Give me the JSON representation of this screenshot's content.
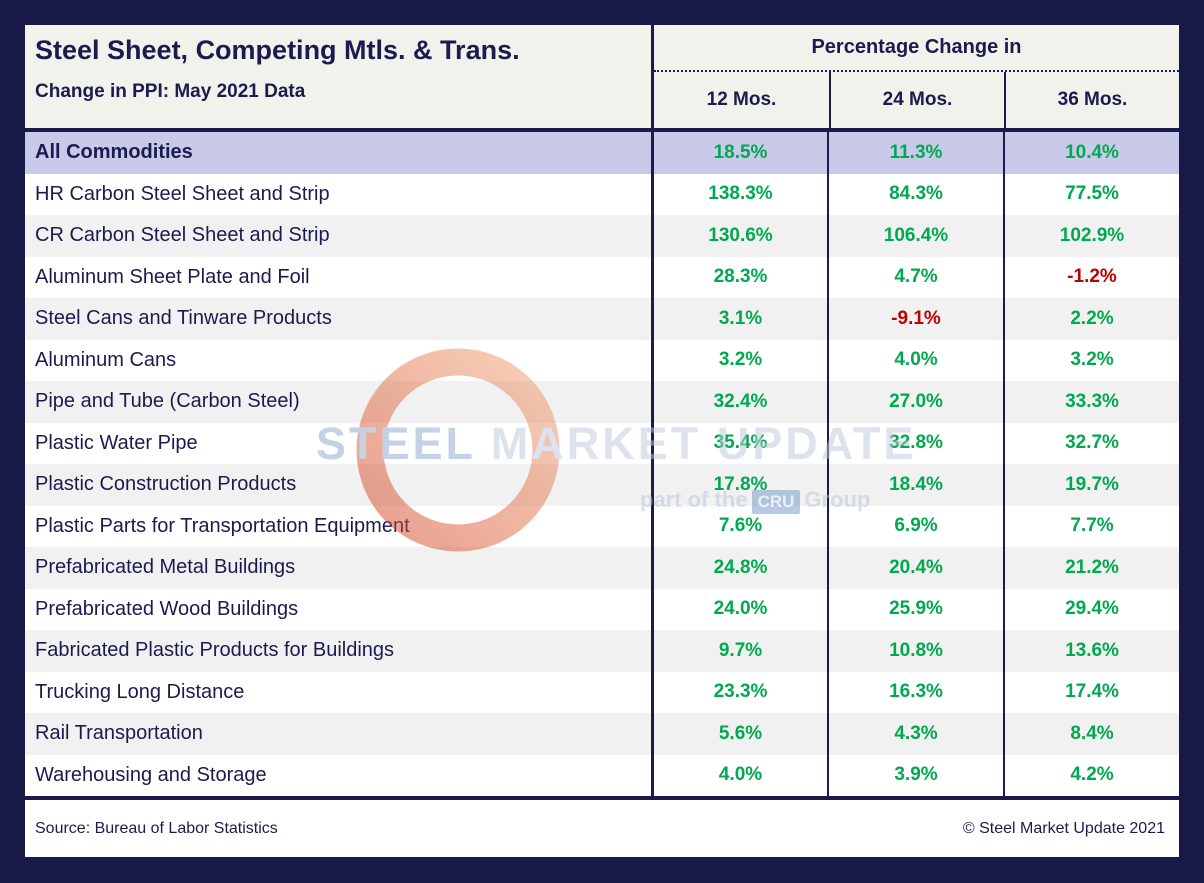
{
  "header": {
    "title": "Steel Sheet, Competing Mtls. & Trans.",
    "subtitle": "Change in PPI: May 2021 Data",
    "group_header": "Percentage Change in",
    "columns": [
      "12 Mos.",
      "24 Mos.",
      "36 Mos."
    ]
  },
  "chart_data": {
    "type": "table",
    "title": "Steel Sheet, Competing Mtls. & Trans.",
    "subtitle": "Change in PPI: May 2021 Data",
    "group_header": "Percentage Change in",
    "columns": [
      "12 Mos.",
      "24 Mos.",
      "36 Mos."
    ],
    "unit": "percent",
    "rows": [
      {
        "label": "All Commodities",
        "values": [
          "18.5%",
          "11.3%",
          "10.4%"
        ],
        "highlight": true
      },
      {
        "label": "HR Carbon Steel Sheet and Strip",
        "values": [
          "138.3%",
          "84.3%",
          "77.5%"
        ]
      },
      {
        "label": "CR Carbon Steel Sheet and Strip",
        "values": [
          "130.6%",
          "106.4%",
          "102.9%"
        ]
      },
      {
        "label": "Aluminum Sheet Plate and Foil",
        "values": [
          "28.3%",
          "4.7%",
          "-1.2%"
        ]
      },
      {
        "label": "Steel Cans and Tinware Products",
        "values": [
          "3.1%",
          "-9.1%",
          "2.2%"
        ]
      },
      {
        "label": "Aluminum Cans",
        "values": [
          "3.2%",
          "4.0%",
          "3.2%"
        ]
      },
      {
        "label": "Pipe and Tube (Carbon Steel)",
        "values": [
          "32.4%",
          "27.0%",
          "33.3%"
        ]
      },
      {
        "label": "Plastic Water Pipe",
        "values": [
          "35.4%",
          "32.8%",
          "32.7%"
        ]
      },
      {
        "label": "Plastic Construction Products",
        "values": [
          "17.8%",
          "18.4%",
          "19.7%"
        ]
      },
      {
        "label": "Plastic Parts for Transportation Equipment",
        "values": [
          "7.6%",
          "6.9%",
          "7.7%"
        ]
      },
      {
        "label": "Prefabricated Metal Buildings",
        "values": [
          "24.8%",
          "20.4%",
          "21.2%"
        ]
      },
      {
        "label": "Prefabricated Wood Buildings",
        "values": [
          "24.0%",
          "25.9%",
          "29.4%"
        ]
      },
      {
        "label": "Fabricated Plastic Products for Buildings",
        "values": [
          "9.7%",
          "10.8%",
          "13.6%"
        ]
      },
      {
        "label": "Trucking Long Distance",
        "values": [
          "23.3%",
          "16.3%",
          "17.4%"
        ]
      },
      {
        "label": "Rail Transportation",
        "values": [
          "5.6%",
          "4.3%",
          "8.4%"
        ]
      },
      {
        "label": "Warehousing and Storage",
        "values": [
          "4.0%",
          "3.9%",
          "4.2%"
        ]
      }
    ]
  },
  "footer": {
    "source": "Source: Bureau of Labor Statistics",
    "copyright": "© Steel Market Update 2021"
  },
  "watermark": {
    "brand_strong": "STEEL",
    "brand_rest": " MARKET UPDATE",
    "tagline_prefix": "part of the",
    "tagline_box": "CRU",
    "tagline_suffix": "Group"
  },
  "colors": {
    "frame_navy": "#191947",
    "navy": "#1b1b4e",
    "green": "#00a94f",
    "red": "#c00000",
    "highlight_row": "#c9c9e9",
    "header_bg": "#f2f2ed",
    "alt_row": "#f1f1f1"
  }
}
